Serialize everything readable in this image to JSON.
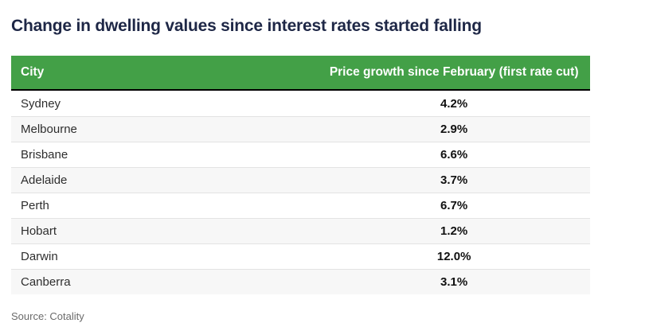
{
  "title": "Change in dwelling values since interest rates started falling",
  "table": {
    "columns": [
      {
        "label": "City"
      },
      {
        "label": "Price growth since February (first rate cut)"
      }
    ],
    "rows": [
      {
        "city": "Sydney",
        "growth": "4.2%"
      },
      {
        "city": "Melbourne",
        "growth": "2.9%"
      },
      {
        "city": "Brisbane",
        "growth": "6.6%"
      },
      {
        "city": "Adelaide",
        "growth": "3.7%"
      },
      {
        "city": "Perth",
        "growth": "6.7%"
      },
      {
        "city": "Hobart",
        "growth": "1.2%"
      },
      {
        "city": "Darwin",
        "growth": "12.0%"
      },
      {
        "city": "Canberra",
        "growth": "3.1%"
      }
    ]
  },
  "source": "Source: Cotality",
  "colors": {
    "header_bg": "#43a047",
    "header_text": "#ffffff",
    "header_border": "#000000",
    "title_text": "#1e2746",
    "row_alt_bg": "#f7f7f7",
    "row_border": "#e3e3e3",
    "city_text": "#2e2e2e",
    "value_text": "#111111",
    "source_text": "#6b6b6b"
  },
  "chart_data": {
    "type": "table",
    "title": "Change in dwelling values since interest rates started falling",
    "columns": [
      "City",
      "Price growth since February (first rate cut)"
    ],
    "unit": "%",
    "rows": [
      [
        "Sydney",
        4.2
      ],
      [
        "Melbourne",
        2.9
      ],
      [
        "Brisbane",
        6.6
      ],
      [
        "Adelaide",
        3.7
      ],
      [
        "Perth",
        6.7
      ],
      [
        "Hobart",
        1.2
      ],
      [
        "Darwin",
        12.0
      ],
      [
        "Canberra",
        3.1
      ]
    ],
    "source": "Source: Cotality"
  }
}
